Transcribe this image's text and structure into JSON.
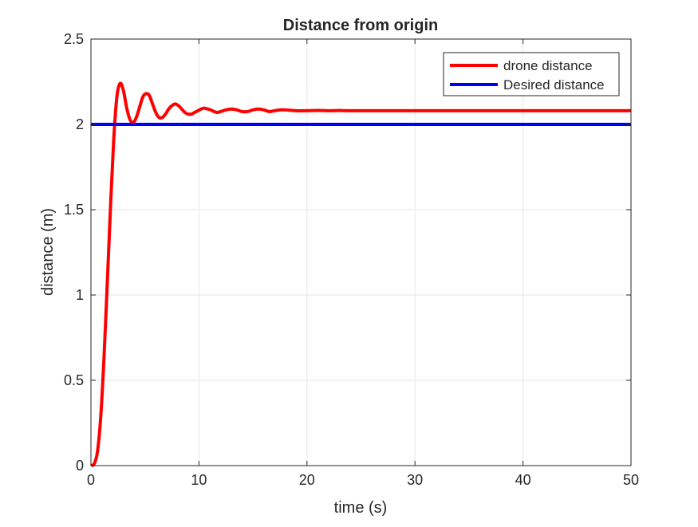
{
  "chart_data": {
    "type": "line",
    "title": "Distance from origin",
    "xlabel": "time (s)",
    "ylabel": "distance (m)",
    "xlim": [
      0,
      50
    ],
    "ylim": [
      0,
      2.5
    ],
    "xticks": [
      0,
      10,
      20,
      30,
      40,
      50
    ],
    "xtick_labels": [
      "0",
      "10",
      "20",
      "30",
      "40",
      "50"
    ],
    "yticks": [
      0,
      0.5,
      1,
      1.5,
      2,
      2.5
    ],
    "ytick_labels": [
      "0",
      "0.5",
      "1",
      "1.5",
      "2",
      "2.5"
    ],
    "grid": true,
    "legend_position": "top-right",
    "series": [
      {
        "name": "drone distance",
        "color": "#ff0000",
        "x": [
          0,
          0.3,
          0.6,
          0.9,
          1.2,
          1.5,
          1.8,
          2.1,
          2.4,
          2.7,
          3.0,
          3.3,
          3.6,
          3.9,
          4.2,
          4.5,
          4.8,
          5.1,
          5.4,
          5.7,
          6.0,
          6.3,
          6.6,
          6.9,
          7.2,
          7.5,
          7.8,
          8.1,
          8.4,
          8.7,
          9.0,
          9.3,
          9.6,
          9.9,
          10.2,
          10.5,
          10.8,
          11.1,
          11.4,
          11.7,
          12.0,
          12.5,
          13.0,
          13.5,
          14.0,
          14.5,
          15.0,
          15.5,
          16.0,
          16.5,
          17.0,
          17.5,
          18.0,
          19.0,
          20.0,
          21.0,
          22.0,
          23.0,
          24.0,
          26.0,
          28.0,
          30.0,
          35.0,
          40.0,
          45.0,
          50.0
        ],
        "y": [
          0,
          0.01,
          0.08,
          0.28,
          0.62,
          1.05,
          1.5,
          1.9,
          2.16,
          2.24,
          2.2,
          2.1,
          2.03,
          2.01,
          2.04,
          2.1,
          2.16,
          2.18,
          2.17,
          2.12,
          2.07,
          2.04,
          2.04,
          2.06,
          2.09,
          2.11,
          2.12,
          2.11,
          2.09,
          2.07,
          2.06,
          2.06,
          2.07,
          2.08,
          2.09,
          2.095,
          2.09,
          2.085,
          2.075,
          2.07,
          2.075,
          2.085,
          2.09,
          2.085,
          2.075,
          2.075,
          2.085,
          2.09,
          2.085,
          2.075,
          2.08,
          2.085,
          2.085,
          2.08,
          2.08,
          2.082,
          2.08,
          2.081,
          2.08,
          2.08,
          2.08,
          2.08,
          2.08,
          2.08,
          2.08,
          2.08
        ]
      },
      {
        "name": "Desired distance",
        "color": "#0000ff",
        "x": [
          0,
          50
        ],
        "y": [
          2,
          2
        ]
      }
    ]
  }
}
